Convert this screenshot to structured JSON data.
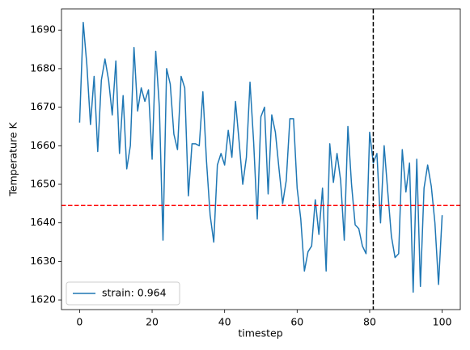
{
  "chart_data": {
    "type": "line",
    "x_label": "timestep",
    "y_label": "Temperature K",
    "x": [
      0,
      1,
      2,
      3,
      4,
      5,
      6,
      7,
      8,
      9,
      10,
      11,
      12,
      13,
      14,
      15,
      16,
      17,
      18,
      19,
      20,
      21,
      22,
      23,
      24,
      25,
      26,
      27,
      28,
      29,
      30,
      31,
      32,
      33,
      34,
      35,
      36,
      37,
      38,
      39,
      40,
      41,
      42,
      43,
      44,
      45,
      46,
      47,
      48,
      49,
      50,
      51,
      52,
      53,
      54,
      55,
      56,
      57,
      58,
      59,
      60,
      61,
      62,
      63,
      64,
      65,
      66,
      67,
      68,
      69,
      70,
      71,
      72,
      73,
      74,
      75,
      76,
      77,
      78,
      79,
      80,
      81,
      82,
      83,
      84,
      85,
      86,
      87,
      88,
      89,
      90,
      91,
      92,
      93,
      94,
      95,
      96,
      97,
      98,
      99,
      100
    ],
    "series": [
      {
        "name": "strain: 0.964",
        "color": "#1f77b4",
        "values": [
          1666,
          1692,
          1681,
          1665.5,
          1678,
          1658.5,
          1677,
          1682.5,
          1677,
          1668,
          1682,
          1658,
          1673,
          1654,
          1660,
          1685.5,
          1669,
          1675,
          1671.5,
          1674.5,
          1656.5,
          1684.5,
          1670,
          1635.5,
          1680,
          1676,
          1663,
          1659,
          1678,
          1675,
          1647,
          1660.5,
          1660.5,
          1660,
          1674,
          1656,
          1642,
          1635,
          1655,
          1658,
          1655,
          1664,
          1657,
          1671.5,
          1661,
          1650,
          1657,
          1676.5,
          1661,
          1641,
          1667.5,
          1670,
          1647.5,
          1668,
          1663.5,
          1654,
          1645,
          1651,
          1667,
          1667,
          1649,
          1641,
          1627.5,
          1632.5,
          1634,
          1646,
          1637,
          1649,
          1627.5,
          1660.5,
          1650.5,
          1658,
          1651,
          1635.5,
          1665,
          1650,
          1639.5,
          1638.5,
          1634,
          1632,
          1663.5,
          1655.5,
          1658,
          1640,
          1660,
          1648,
          1636.5,
          1631,
          1632,
          1659,
          1648,
          1655.5,
          1622,
          1656.5,
          1623.5,
          1649,
          1655,
          1649.5,
          1640,
          1624,
          1642
        ]
      }
    ],
    "xlim": [
      -5,
      105
    ],
    "xticks": [
      0,
      20,
      40,
      60,
      80,
      100
    ],
    "ylim": [
      1617.5,
      1695.5
    ],
    "yticks": [
      1620,
      1630,
      1640,
      1650,
      1660,
      1670,
      1680,
      1690
    ],
    "hline": {
      "value": 1644.5,
      "color": "#ff0000"
    },
    "vline": {
      "value": 81,
      "color": "#000000"
    },
    "legend": "lower left",
    "grid": false
  }
}
